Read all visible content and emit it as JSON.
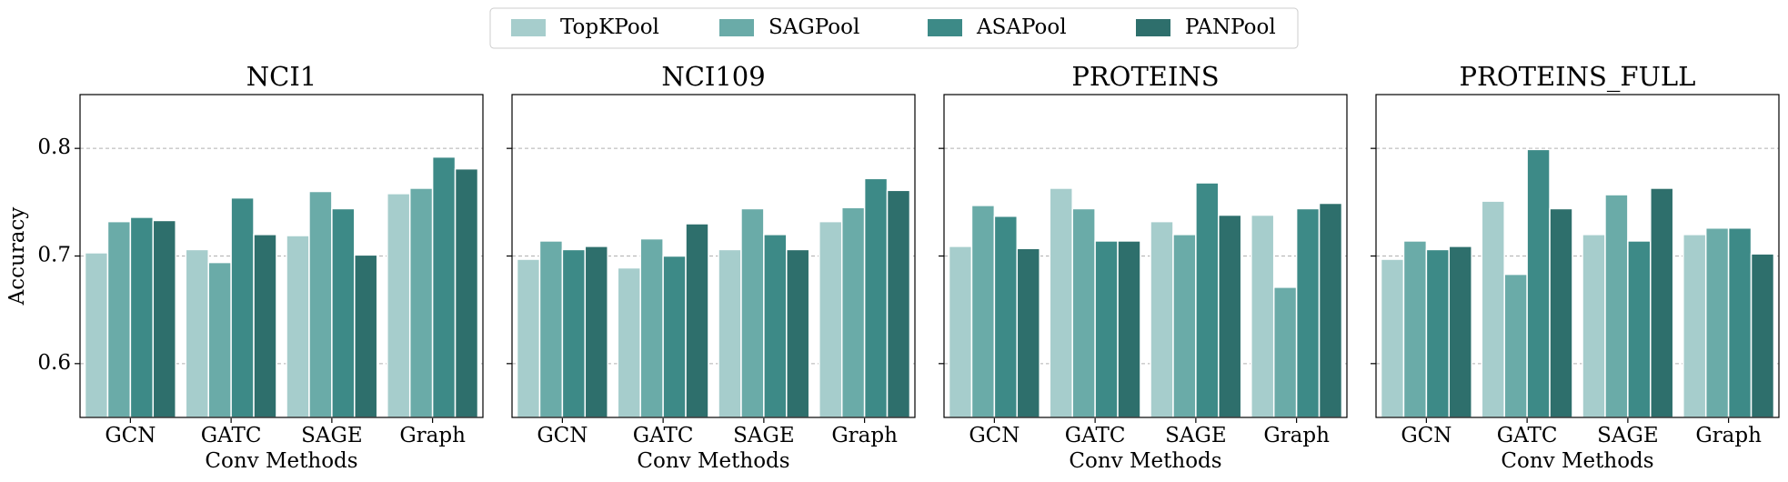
{
  "chart_data": [
    {
      "type": "bar",
      "title": "NCI1",
      "xlabel": "Conv Methods",
      "ylabel": "Accuracy",
      "categories": [
        "GCN",
        "GATC",
        "SAGE",
        "Graph"
      ],
      "ylim": [
        0.55,
        0.85
      ],
      "yticks": [
        0.6,
        0.7,
        0.8
      ],
      "grid": true,
      "legend": "upper center",
      "series": [
        {
          "name": "TopKPool",
          "color": "#a6cdcc",
          "values": [
            0.703,
            0.706,
            0.719,
            0.758
          ]
        },
        {
          "name": "SAGPool",
          "color": "#6aaba8",
          "values": [
            0.732,
            0.694,
            0.76,
            0.763
          ]
        },
        {
          "name": "ASAPool",
          "color": "#3d8a87",
          "values": [
            0.736,
            0.754,
            0.744,
            0.792
          ]
        },
        {
          "name": "PANPool",
          "color": "#2e6f6c",
          "values": [
            0.733,
            0.72,
            0.701,
            0.781
          ]
        }
      ]
    },
    {
      "type": "bar",
      "title": "NCI109",
      "xlabel": "Conv Methods",
      "categories": [
        "GCN",
        "GATC",
        "SAGE",
        "Graph"
      ],
      "ylim": [
        0.55,
        0.85
      ],
      "yticks": [
        0.6,
        0.7,
        0.8
      ],
      "grid": true,
      "series": [
        {
          "color": "#a6cdcc",
          "values": [
            0.697,
            0.689,
            0.706,
            0.732
          ]
        },
        {
          "color": "#6aaba8",
          "values": [
            0.714,
            0.716,
            0.744,
            0.745
          ]
        },
        {
          "color": "#3d8a87",
          "values": [
            0.706,
            0.7,
            0.72,
            0.772
          ]
        },
        {
          "color": "#2e6f6c",
          "values": [
            0.709,
            0.73,
            0.706,
            0.761
          ]
        }
      ]
    },
    {
      "type": "bar",
      "title": "PROTEINS",
      "xlabel": "Conv Methods",
      "categories": [
        "GCN",
        "GATC",
        "SAGE",
        "Graph"
      ],
      "ylim": [
        0.55,
        0.85
      ],
      "yticks": [
        0.6,
        0.7,
        0.8
      ],
      "grid": true,
      "series": [
        {
          "color": "#a6cdcc",
          "values": [
            0.709,
            0.763,
            0.732,
            0.738
          ]
        },
        {
          "color": "#6aaba8",
          "values": [
            0.747,
            0.744,
            0.72,
            0.671
          ]
        },
        {
          "color": "#3d8a87",
          "values": [
            0.737,
            0.714,
            0.768,
            0.744
          ]
        },
        {
          "color": "#2e6f6c",
          "values": [
            0.707,
            0.714,
            0.738,
            0.749
          ]
        }
      ]
    },
    {
      "type": "bar",
      "title": "PROTEINS_FULL",
      "xlabel": "Conv Methods",
      "categories": [
        "GCN",
        "GATC",
        "SAGE",
        "Graph"
      ],
      "ylim": [
        0.55,
        0.85
      ],
      "yticks": [
        0.6,
        0.7,
        0.8
      ],
      "grid": true,
      "series": [
        {
          "color": "#a6cdcc",
          "values": [
            0.697,
            0.751,
            0.72,
            0.72
          ]
        },
        {
          "color": "#6aaba8",
          "values": [
            0.714,
            0.683,
            0.757,
            0.726
          ]
        },
        {
          "color": "#3d8a87",
          "values": [
            0.706,
            0.799,
            0.714,
            0.726
          ]
        },
        {
          "color": "#2e6f6c",
          "values": [
            0.709,
            0.744,
            0.763,
            0.702
          ]
        }
      ]
    }
  ]
}
